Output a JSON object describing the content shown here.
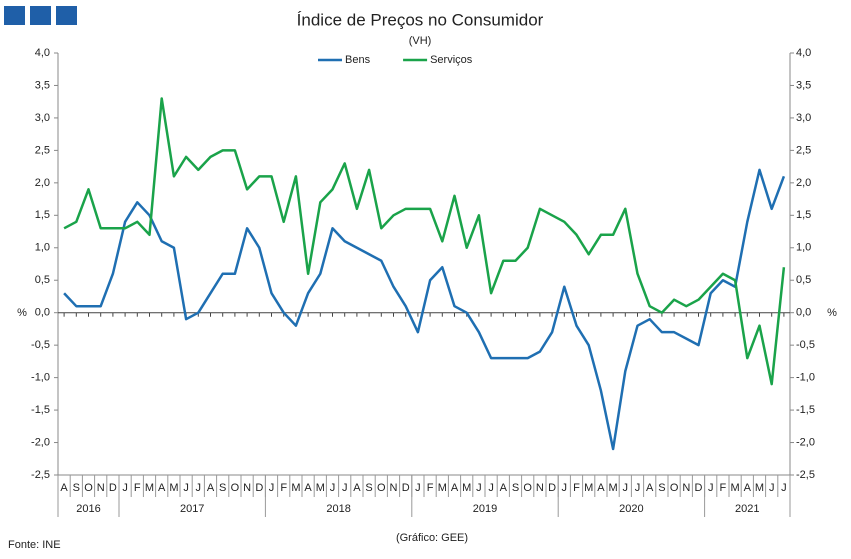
{
  "chart_data": {
    "type": "line",
    "title": "Índice de Preços no Consumidor",
    "subtitle": "(VH)",
    "y_label": "%",
    "y2_label": "%",
    "source": "Fonte: INE",
    "credit": "(Gráfico: GEE)",
    "categories": [
      "A",
      "S",
      "O",
      "N",
      "D",
      "J",
      "F",
      "M",
      "A",
      "M",
      "J",
      "J",
      "A",
      "S",
      "O",
      "N",
      "D",
      "J",
      "F",
      "M",
      "A",
      "M",
      "J",
      "J",
      "A",
      "S",
      "O",
      "N",
      "D",
      "J",
      "F",
      "M",
      "A",
      "M",
      "J",
      "J",
      "A",
      "S",
      "O",
      "N",
      "D",
      "J",
      "F",
      "M",
      "A",
      "M",
      "J",
      "J",
      "A",
      "S",
      "O",
      "N",
      "D",
      "J",
      "F",
      "M",
      "A",
      "M",
      "J",
      "J"
    ],
    "years": [
      "2016",
      "2017",
      "2018",
      "2019",
      "2020",
      "2021"
    ],
    "series": [
      {
        "name": "Bens",
        "color": "#1f6fb2",
        "values": [
          0.3,
          0.1,
          0.1,
          0.1,
          0.6,
          1.4,
          1.7,
          1.5,
          1.1,
          1.0,
          -0.1,
          0.0,
          0.3,
          0.6,
          0.6,
          1.3,
          1.0,
          0.3,
          0.0,
          -0.2,
          0.3,
          0.6,
          1.3,
          1.1,
          1.0,
          0.9,
          0.8,
          0.4,
          0.1,
          -0.3,
          0.5,
          0.7,
          0.1,
          0.0,
          -0.3,
          -0.7,
          -0.7,
          -0.7,
          -0.7,
          -0.6,
          -0.3,
          0.4,
          -0.2,
          -0.5,
          -1.2,
          -2.1,
          -0.9,
          -0.2,
          -0.1,
          -0.3,
          -0.3,
          -0.4,
          -0.5,
          0.3,
          0.5,
          0.4,
          1.4,
          2.2,
          1.6,
          2.1
        ]
      },
      {
        "name": "Serviços",
        "color": "#1aa34a",
        "values": [
          1.3,
          1.4,
          1.9,
          1.3,
          1.3,
          1.3,
          1.4,
          1.2,
          3.3,
          2.1,
          2.4,
          2.2,
          2.4,
          2.5,
          2.5,
          1.9,
          2.1,
          2.1,
          1.4,
          2.1,
          0.6,
          1.7,
          1.9,
          2.3,
          1.6,
          2.2,
          1.3,
          1.5,
          1.6,
          1.6,
          1.6,
          1.1,
          1.8,
          1.0,
          1.5,
          0.3,
          0.8,
          0.8,
          1.0,
          1.6,
          1.5,
          1.4,
          1.2,
          0.9,
          1.2,
          1.2,
          1.6,
          0.6,
          0.1,
          0.0,
          0.2,
          0.1,
          0.2,
          0.4,
          0.6,
          0.5,
          -0.7,
          -0.2,
          -1.1,
          0.7
        ]
      }
    ],
    "ylim": [
      -2.5,
      4.0
    ],
    "yticks": [
      {
        "value": 4.0,
        "label": "4,0"
      },
      {
        "value": 3.5,
        "label": "3,5"
      },
      {
        "value": 3.0,
        "label": "3,0"
      },
      {
        "value": 2.5,
        "label": "2,5"
      },
      {
        "value": 2.0,
        "label": "2,0"
      },
      {
        "value": 1.5,
        "label": "1,5"
      },
      {
        "value": 1.0,
        "label": "1,0"
      },
      {
        "value": 0.5,
        "label": "0,5"
      },
      {
        "value": 0.0,
        "label": "0,0"
      },
      {
        "value": -0.5,
        "label": "-0,5"
      },
      {
        "value": -1.0,
        "label": "-1,0"
      },
      {
        "value": -1.5,
        "label": "-1,5"
      },
      {
        "value": -2.0,
        "label": "-2,0"
      },
      {
        "value": -2.5,
        "label": "-2,5"
      }
    ],
    "y2lim": [
      -2.5,
      4.0
    ],
    "y2ticks": [
      {
        "value": 4.0,
        "label": "4,0"
      },
      {
        "value": 3.5,
        "label": "3,5"
      },
      {
        "value": 3.0,
        "label": "3,0"
      },
      {
        "value": 2.5,
        "label": "2,5"
      },
      {
        "value": 2.0,
        "label": "2,0"
      },
      {
        "value": 1.5,
        "label": "1,5"
      },
      {
        "value": 1.0,
        "label": "1,0"
      },
      {
        "value": 0.5,
        "label": "0,5"
      },
      {
        "value": 0.0,
        "label": "0,0"
      },
      {
        "value": -0.5,
        "label": "-0,5"
      },
      {
        "value": -1.0,
        "label": "-1,0"
      },
      {
        "value": -1.5,
        "label": "-1,5"
      },
      {
        "value": -2.0,
        "label": "-2,0"
      },
      {
        "value": -2.5,
        "label": "-2,5"
      }
    ],
    "legend": "top"
  }
}
